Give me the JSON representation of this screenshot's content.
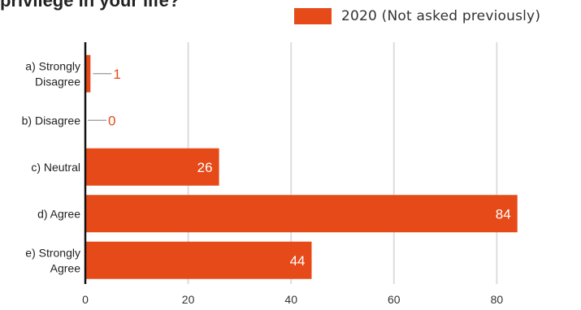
{
  "title": "privilege in your life?",
  "legend": {
    "label": "2020    (Not asked previously)"
  },
  "colors": {
    "bar": "#e64a19",
    "grid": "#dddddd",
    "axis": "#111111",
    "text": "#333333",
    "label_inside": "#ffffff"
  },
  "chart_data": {
    "type": "bar",
    "orientation": "horizontal",
    "title": "privilege in your life?",
    "categories": [
      [
        "a) Strongly",
        "Disagree"
      ],
      [
        "b) Disagree"
      ],
      [
        "c) Neutral"
      ],
      [
        "d) Agree"
      ],
      [
        "e) Strongly",
        "Agree"
      ]
    ],
    "series": [
      {
        "name": "2020    (Not asked previously)",
        "values": [
          1,
          0,
          26,
          84,
          44
        ]
      }
    ],
    "xlim": [
      0,
      90
    ],
    "xticks": [
      0,
      20,
      40,
      60,
      80
    ],
    "grid": true,
    "legend_position": "top-right"
  }
}
